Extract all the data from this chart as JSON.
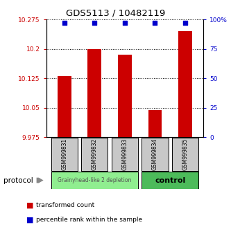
{
  "title": "GDS5113 / 10482119",
  "samples": [
    "GSM999831",
    "GSM999832",
    "GSM999833",
    "GSM999834",
    "GSM999835"
  ],
  "red_values": [
    10.13,
    10.2,
    10.185,
    10.045,
    10.245
  ],
  "blue_values": [
    97,
    97,
    97,
    97,
    97
  ],
  "ylim_left": [
    9.975,
    10.275
  ],
  "ylim_right": [
    0,
    100
  ],
  "yticks_left": [
    9.975,
    10.05,
    10.125,
    10.2,
    10.275
  ],
  "ytick_labels_left": [
    "9.975",
    "10.05",
    "10.125",
    "10.2",
    "10.275"
  ],
  "yticks_right": [
    0,
    25,
    50,
    75,
    100
  ],
  "ytick_labels_right": [
    "0",
    "25",
    "50",
    "75",
    "100%"
  ],
  "group1_samples": [
    0,
    1,
    2
  ],
  "group2_samples": [
    3,
    4
  ],
  "group1_label": "Grainyhead-like 2 depletion",
  "group2_label": "control",
  "group1_color": "#90EE90",
  "group2_color": "#4CBB5A",
  "protocol_label": "protocol",
  "legend_red_label": "transformed count",
  "legend_blue_label": "percentile rank within the sample",
  "red_color": "#CC0000",
  "blue_color": "#0000CC",
  "bar_width": 0.45,
  "sample_box_color": "#C8C8C8",
  "sample_box_edge": "#000000",
  "fig_width": 3.33,
  "fig_height": 3.54,
  "dpi": 100
}
